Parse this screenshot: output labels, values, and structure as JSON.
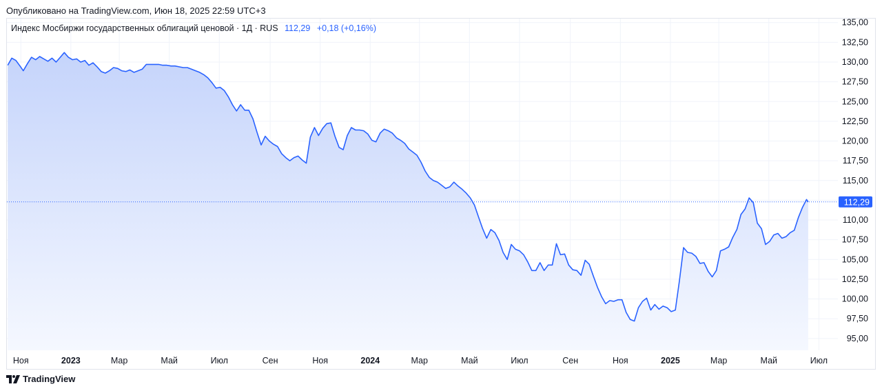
{
  "header": {
    "published": "Опубликовано на TradingView.com, Июн 18, 2025 22:59 UTC+3"
  },
  "legend": {
    "title": "Индекс Мосбиржи государственных облигаций ценовой · 1Д · RUS",
    "last_value": "112,29",
    "change": "+0,18 (+0,16%)"
  },
  "footer": {
    "brand": "TradingView",
    "logo_icon": "tradingview-logo-icon"
  },
  "colors": {
    "line": "#2962ff",
    "fill_top": "#c5d4fb",
    "fill_bottom": "#f5f8ff",
    "grid": "#f0f3fa",
    "badge": "#2962ff"
  },
  "chart_data": {
    "type": "area",
    "title": "Индекс Мосбиржи государственных облигаций ценовой · 1Д · RUS",
    "ylim": [
      93.5,
      135.5
    ],
    "y_ticks": [
      "95,00",
      "97,50",
      "100,00",
      "102,50",
      "105,00",
      "107,50",
      "110,00",
      "112,50",
      "115,00",
      "117,50",
      "120,00",
      "122,50",
      "125,00",
      "127,50",
      "130,00",
      "132,50",
      "135,00"
    ],
    "y_tick_values": [
      95,
      97.5,
      100,
      102.5,
      105,
      107.5,
      110,
      112.5,
      115,
      117.5,
      120,
      122.5,
      125,
      127.5,
      130,
      132.5,
      135
    ],
    "x_ticks": [
      {
        "label": "Ноя",
        "date": "2022-11-01",
        "bold": false
      },
      {
        "label": "2023",
        "date": "2023-01-01",
        "bold": true
      },
      {
        "label": "Мар",
        "date": "2023-03-01",
        "bold": false
      },
      {
        "label": "Май",
        "date": "2023-05-01",
        "bold": false
      },
      {
        "label": "Июл",
        "date": "2023-07-01",
        "bold": false
      },
      {
        "label": "Сен",
        "date": "2023-09-01",
        "bold": false
      },
      {
        "label": "Ноя",
        "date": "2023-11-01",
        "bold": false
      },
      {
        "label": "2024",
        "date": "2024-01-01",
        "bold": true
      },
      {
        "label": "Мар",
        "date": "2024-03-01",
        "bold": false
      },
      {
        "label": "Май",
        "date": "2024-05-01",
        "bold": false
      },
      {
        "label": "Июл",
        "date": "2024-07-01",
        "bold": false
      },
      {
        "label": "Сен",
        "date": "2024-09-01",
        "bold": false
      },
      {
        "label": "Ноя",
        "date": "2024-11-01",
        "bold": false
      },
      {
        "label": "2025",
        "date": "2025-01-01",
        "bold": true
      },
      {
        "label": "Мар",
        "date": "2025-03-01",
        "bold": false
      },
      {
        "label": "Май",
        "date": "2025-05-01",
        "bold": false
      },
      {
        "label": "Июл",
        "date": "2025-07-01",
        "bold": false
      }
    ],
    "last_label": "112,29",
    "last_value": 112.29,
    "series": [
      {
        "points": [
          [
            "2022-10-16",
            129.6
          ],
          [
            "2022-10-21",
            130.5
          ],
          [
            "2022-10-26",
            130.2
          ],
          [
            "2022-10-31",
            129.5
          ],
          [
            "2022-11-04",
            128.9
          ],
          [
            "2022-11-09",
            129.8
          ],
          [
            "2022-11-14",
            130.6
          ],
          [
            "2022-11-19",
            130.3
          ],
          [
            "2022-11-24",
            130.7
          ],
          [
            "2022-11-29",
            130.4
          ],
          [
            "2022-12-04",
            130.1
          ],
          [
            "2022-12-09",
            130.5
          ],
          [
            "2022-12-14",
            130.0
          ],
          [
            "2022-12-19",
            130.6
          ],
          [
            "2022-12-24",
            131.2
          ],
          [
            "2022-12-29",
            130.6
          ],
          [
            "2023-01-03",
            130.3
          ],
          [
            "2023-01-08",
            130.4
          ],
          [
            "2023-01-13",
            130.0
          ],
          [
            "2023-01-18",
            130.2
          ],
          [
            "2023-01-23",
            129.6
          ],
          [
            "2023-01-28",
            129.9
          ],
          [
            "2023-02-02",
            129.4
          ],
          [
            "2023-02-07",
            128.8
          ],
          [
            "2023-02-12",
            128.6
          ],
          [
            "2023-02-17",
            128.9
          ],
          [
            "2023-02-22",
            129.3
          ],
          [
            "2023-02-27",
            129.2
          ],
          [
            "2023-03-04",
            128.9
          ],
          [
            "2023-03-09",
            128.8
          ],
          [
            "2023-03-14",
            129.0
          ],
          [
            "2023-03-19",
            128.7
          ],
          [
            "2023-03-24",
            128.9
          ],
          [
            "2023-03-29",
            129.1
          ],
          [
            "2023-04-03",
            129.7
          ],
          [
            "2023-04-08",
            129.7
          ],
          [
            "2023-04-13",
            129.7
          ],
          [
            "2023-04-18",
            129.7
          ],
          [
            "2023-04-23",
            129.6
          ],
          [
            "2023-04-28",
            129.6
          ],
          [
            "2023-05-03",
            129.5
          ],
          [
            "2023-05-08",
            129.5
          ],
          [
            "2023-05-13",
            129.4
          ],
          [
            "2023-05-18",
            129.3
          ],
          [
            "2023-05-23",
            129.3
          ],
          [
            "2023-05-28",
            129.1
          ],
          [
            "2023-06-02",
            128.9
          ],
          [
            "2023-06-07",
            128.7
          ],
          [
            "2023-06-12",
            128.4
          ],
          [
            "2023-06-17",
            128.0
          ],
          [
            "2023-06-22",
            127.4
          ],
          [
            "2023-06-27",
            126.7
          ],
          [
            "2023-07-02",
            126.8
          ],
          [
            "2023-07-07",
            126.4
          ],
          [
            "2023-07-12",
            125.6
          ],
          [
            "2023-07-17",
            124.6
          ],
          [
            "2023-07-22",
            123.8
          ],
          [
            "2023-07-27",
            124.6
          ],
          [
            "2023-08-01",
            123.9
          ],
          [
            "2023-08-06",
            123.9
          ],
          [
            "2023-08-11",
            122.8
          ],
          [
            "2023-08-16",
            121.1
          ],
          [
            "2023-08-21",
            119.5
          ],
          [
            "2023-08-26",
            120.6
          ],
          [
            "2023-08-31",
            120.0
          ],
          [
            "2023-09-05",
            119.6
          ],
          [
            "2023-09-10",
            119.3
          ],
          [
            "2023-09-15",
            118.4
          ],
          [
            "2023-09-20",
            117.9
          ],
          [
            "2023-09-25",
            117.5
          ],
          [
            "2023-09-30",
            117.9
          ],
          [
            "2023-10-05",
            118.1
          ],
          [
            "2023-10-10",
            117.6
          ],
          [
            "2023-10-15",
            117.2
          ],
          [
            "2023-10-20",
            120.5
          ],
          [
            "2023-10-25",
            121.7
          ],
          [
            "2023-10-30",
            120.7
          ],
          [
            "2023-11-04",
            121.6
          ],
          [
            "2023-11-09",
            122.2
          ],
          [
            "2023-11-14",
            122.3
          ],
          [
            "2023-11-19",
            120.6
          ],
          [
            "2023-11-24",
            119.2
          ],
          [
            "2023-11-29",
            118.9
          ],
          [
            "2023-12-04",
            120.7
          ],
          [
            "2023-12-09",
            121.7
          ],
          [
            "2023-12-14",
            121.4
          ],
          [
            "2023-12-19",
            121.4
          ],
          [
            "2023-12-24",
            121.3
          ],
          [
            "2023-12-29",
            120.9
          ],
          [
            "2024-01-03",
            120.1
          ],
          [
            "2024-01-08",
            119.9
          ],
          [
            "2024-01-13",
            121.0
          ],
          [
            "2024-01-18",
            121.5
          ],
          [
            "2024-01-23",
            121.3
          ],
          [
            "2024-01-28",
            121.0
          ],
          [
            "2024-02-02",
            120.4
          ],
          [
            "2024-02-07",
            120.1
          ],
          [
            "2024-02-12",
            119.7
          ],
          [
            "2024-02-17",
            119.0
          ],
          [
            "2024-02-22",
            118.6
          ],
          [
            "2024-02-27",
            118.2
          ],
          [
            "2024-03-03",
            117.3
          ],
          [
            "2024-03-08",
            116.2
          ],
          [
            "2024-03-13",
            115.4
          ],
          [
            "2024-03-18",
            115.0
          ],
          [
            "2024-03-23",
            114.8
          ],
          [
            "2024-03-28",
            114.4
          ],
          [
            "2024-04-02",
            114.0
          ],
          [
            "2024-04-07",
            114.2
          ],
          [
            "2024-04-12",
            114.8
          ],
          [
            "2024-04-17",
            114.3
          ],
          [
            "2024-04-22",
            113.9
          ],
          [
            "2024-04-27",
            113.4
          ],
          [
            "2024-05-02",
            112.8
          ],
          [
            "2024-05-07",
            111.9
          ],
          [
            "2024-05-12",
            110.4
          ],
          [
            "2024-05-17",
            108.9
          ],
          [
            "2024-05-22",
            107.7
          ],
          [
            "2024-05-27",
            108.8
          ],
          [
            "2024-06-01",
            108.4
          ],
          [
            "2024-06-06",
            107.4
          ],
          [
            "2024-06-11",
            105.9
          ],
          [
            "2024-06-16",
            105.0
          ],
          [
            "2024-06-21",
            106.9
          ],
          [
            "2024-06-26",
            106.3
          ],
          [
            "2024-07-01",
            106.1
          ],
          [
            "2024-07-06",
            105.6
          ],
          [
            "2024-07-11",
            104.7
          ],
          [
            "2024-07-16",
            103.6
          ],
          [
            "2024-07-21",
            103.6
          ],
          [
            "2024-07-26",
            104.6
          ],
          [
            "2024-07-31",
            103.6
          ],
          [
            "2024-08-05",
            104.3
          ],
          [
            "2024-08-10",
            104.3
          ],
          [
            "2024-08-15",
            107.0
          ],
          [
            "2024-08-20",
            105.6
          ],
          [
            "2024-08-25",
            105.7
          ],
          [
            "2024-08-30",
            104.3
          ],
          [
            "2024-09-04",
            103.7
          ],
          [
            "2024-09-09",
            103.6
          ],
          [
            "2024-09-14",
            103.0
          ],
          [
            "2024-09-19",
            104.9
          ],
          [
            "2024-09-24",
            104.4
          ],
          [
            "2024-09-29",
            102.9
          ],
          [
            "2024-10-04",
            101.5
          ],
          [
            "2024-10-09",
            100.3
          ],
          [
            "2024-10-14",
            99.4
          ],
          [
            "2024-10-19",
            99.8
          ],
          [
            "2024-10-24",
            99.7
          ],
          [
            "2024-10-29",
            99.9
          ],
          [
            "2024-11-03",
            99.9
          ],
          [
            "2024-11-08",
            98.3
          ],
          [
            "2024-11-13",
            97.4
          ],
          [
            "2024-11-18",
            97.2
          ],
          [
            "2024-11-23",
            98.9
          ],
          [
            "2024-11-28",
            99.7
          ],
          [
            "2024-12-03",
            100.1
          ],
          [
            "2024-12-08",
            98.6
          ],
          [
            "2024-12-13",
            99.3
          ],
          [
            "2024-12-18",
            98.7
          ],
          [
            "2024-12-23",
            99.1
          ],
          [
            "2024-12-28",
            98.9
          ],
          [
            "2025-01-02",
            98.4
          ],
          [
            "2025-01-07",
            98.6
          ],
          [
            "2025-01-12",
            102.3
          ],
          [
            "2025-01-17",
            106.5
          ],
          [
            "2025-01-22",
            105.9
          ],
          [
            "2025-01-27",
            105.8
          ],
          [
            "2025-02-01",
            105.4
          ],
          [
            "2025-02-06",
            104.5
          ],
          [
            "2025-02-11",
            104.6
          ],
          [
            "2025-02-16",
            103.5
          ],
          [
            "2025-02-21",
            102.8
          ],
          [
            "2025-02-26",
            103.6
          ],
          [
            "2025-03-03",
            106.1
          ],
          [
            "2025-03-08",
            106.3
          ],
          [
            "2025-03-13",
            106.6
          ],
          [
            "2025-03-18",
            107.8
          ],
          [
            "2025-03-23",
            108.8
          ],
          [
            "2025-03-28",
            110.7
          ],
          [
            "2025-04-02",
            111.4
          ],
          [
            "2025-04-07",
            112.8
          ],
          [
            "2025-04-12",
            112.2
          ],
          [
            "2025-04-17",
            109.6
          ],
          [
            "2025-04-22",
            108.9
          ],
          [
            "2025-04-27",
            106.9
          ],
          [
            "2025-05-02",
            107.3
          ],
          [
            "2025-05-07",
            108.1
          ],
          [
            "2025-05-12",
            108.3
          ],
          [
            "2025-05-17",
            107.7
          ],
          [
            "2025-05-22",
            107.9
          ],
          [
            "2025-05-27",
            108.4
          ],
          [
            "2025-06-01",
            108.7
          ],
          [
            "2025-06-06",
            110.3
          ],
          [
            "2025-06-11",
            111.6
          ],
          [
            "2025-06-16",
            112.6
          ],
          [
            "2025-06-18",
            112.29
          ]
        ]
      }
    ],
    "grid": true,
    "legend_position": "top-left"
  }
}
